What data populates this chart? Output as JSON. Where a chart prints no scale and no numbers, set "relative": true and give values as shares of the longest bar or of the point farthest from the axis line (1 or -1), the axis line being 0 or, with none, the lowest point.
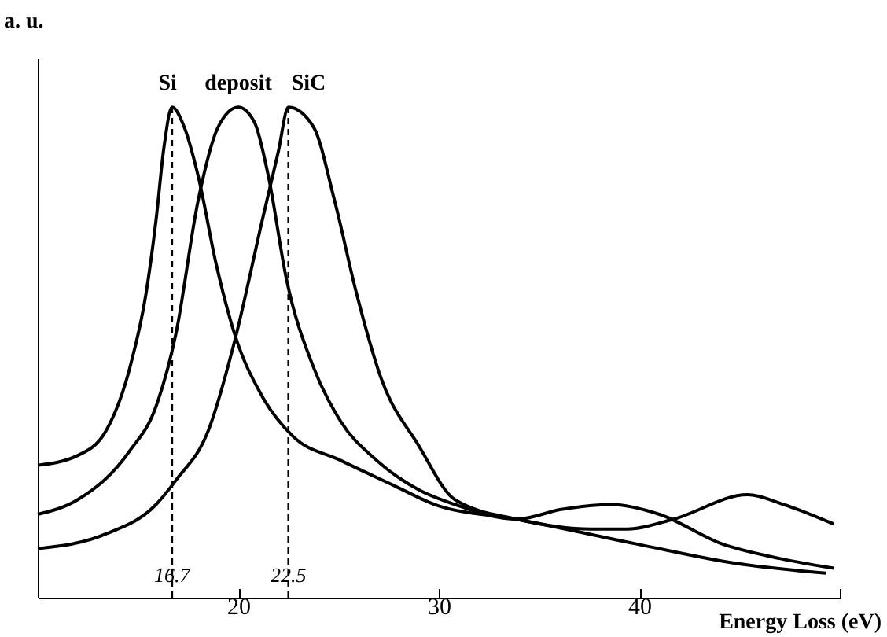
{
  "chart_data": {
    "type": "line",
    "relative": true,
    "xlabel": "Energy Loss (eV)",
    "ylabel": "a. u.",
    "xlim": [
      10,
      50
    ],
    "xticks": [
      20,
      30,
      40,
      {
        "value": 50,
        "label": null
      }
    ],
    "legend": false,
    "grid": false,
    "marker": "none",
    "line_style": "solid",
    "series": [
      {
        "name": "Si",
        "color": "#000000",
        "x": [
          10,
          12.0,
          13.4,
          14.6,
          15.4,
          15.9,
          16.3,
          16.7,
          17.3,
          18.0,
          18.9,
          19.8,
          21.2,
          22.7,
          25.1,
          27.7,
          29.8,
          33.9,
          39.8,
          44.8,
          49.3
        ],
        "values": [
          0.27,
          0.29,
          0.34,
          0.47,
          0.62,
          0.77,
          0.92,
          1,
          0.96,
          0.86,
          0.68,
          0.54,
          0.41,
          0.33,
          0.28,
          0.23,
          0.19,
          0.16,
          0.11,
          0.07,
          0.05
        ]
      },
      {
        "name": "deposit",
        "color": "#000000",
        "x": [
          10,
          12.0,
          14.6,
          15.9,
          16.9,
          18.0,
          19.0,
          20.0,
          20.8,
          21.5,
          22.4,
          23.75,
          25.1,
          26.9,
          29.0,
          30.8,
          33.9,
          36.1,
          38.6,
          41.0,
          44.1,
          47.0,
          49.7
        ],
        "values": [
          0.17,
          0.2,
          0.3,
          0.39,
          0.54,
          0.81,
          0.96,
          1,
          0.97,
          0.86,
          0.65,
          0.47,
          0.36,
          0.28,
          0.22,
          0.19,
          0.16,
          0.18,
          0.19,
          0.17,
          0.11,
          0.08,
          0.06
        ]
      },
      {
        "name": "SiC",
        "color": "#000000",
        "x": [
          10,
          13.4,
          15.9,
          16.9,
          18.5,
          19.8,
          21.2,
          22.0,
          22.5,
          23.75,
          24.8,
          25.9,
          27.1,
          29.0,
          30.8,
          33.9,
          37.6,
          39.4,
          41.7,
          45.4,
          47.2,
          49.7
        ],
        "values": [
          0.1,
          0.13,
          0.19,
          0.24,
          0.34,
          0.52,
          0.77,
          0.91,
          1,
          0.96,
          0.81,
          0.62,
          0.45,
          0.31,
          0.2,
          0.16,
          0.14,
          0.14,
          0.16,
          0.21,
          0.19,
          0.15
        ]
      }
    ],
    "ref_lines": [
      {
        "axis": "x",
        "value": 16.7,
        "label": "16.7",
        "line_style": "dashed"
      },
      {
        "axis": "x",
        "value": 22.5,
        "label": "22.5",
        "line_style": "dashed"
      }
    ]
  }
}
